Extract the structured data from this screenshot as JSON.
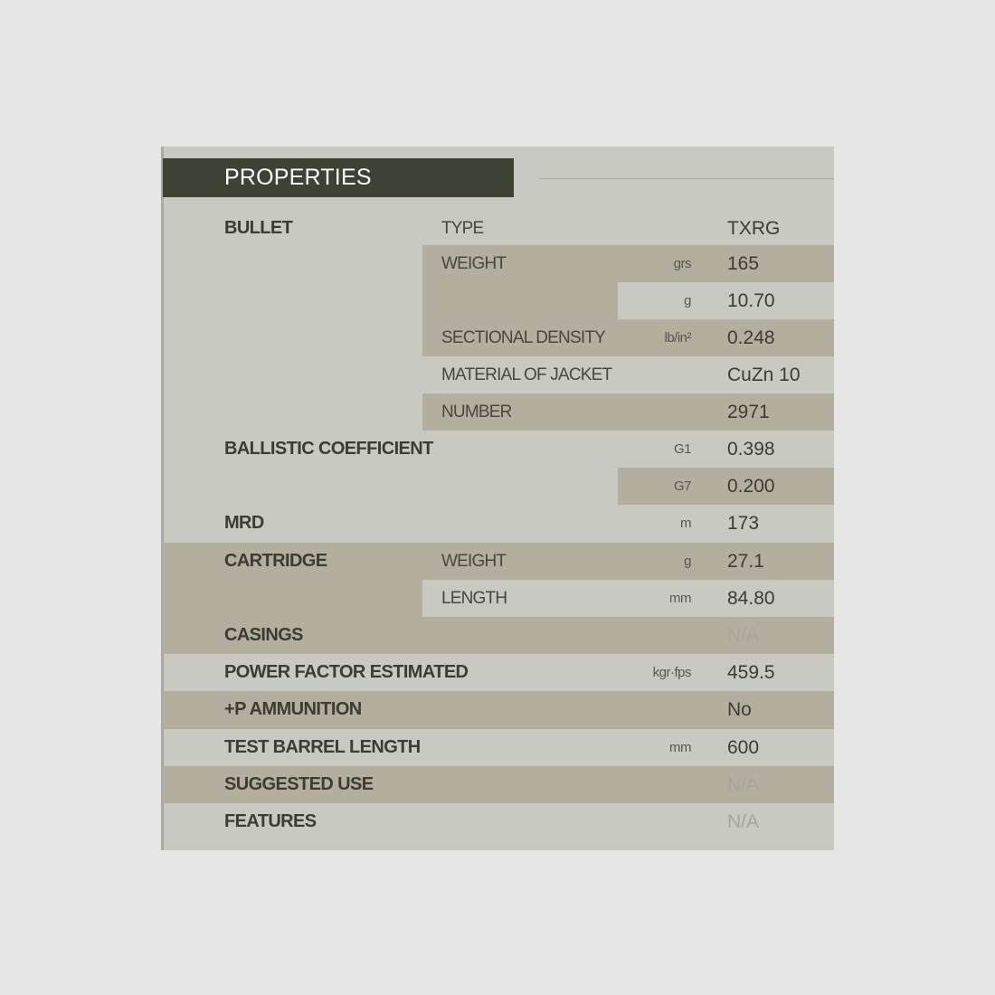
{
  "header": {
    "title": "PROPERTIES"
  },
  "table": {
    "rows": [
      {
        "group": "BULLET",
        "label": "TYPE",
        "value": "TXRG"
      },
      {
        "label": "WEIGHT",
        "unit": "grs",
        "value": "165"
      },
      {
        "unit": "g",
        "value": "10.70"
      },
      {
        "label": "SECTIONAL DENSITY",
        "unit": "lb/in²",
        "value": "0.248"
      },
      {
        "label": "MATERIAL OF JACKET",
        "value": "CuZn 10"
      },
      {
        "label": "NUMBER",
        "value": "2971"
      },
      {
        "group": "BALLISTIC COEFFICIENT",
        "unit": "G1",
        "value": "0.398"
      },
      {
        "unit": "G7",
        "value": "0.200"
      },
      {
        "group": "MRD",
        "unit": "m",
        "value": "173"
      },
      {
        "group": "CARTRIDGE",
        "label": "WEIGHT",
        "unit": "g",
        "value": "27.1"
      },
      {
        "label": "LENGTH",
        "unit": "mm",
        "value": "84.80"
      },
      {
        "group": "CASINGS",
        "value": "N/A"
      },
      {
        "group": "POWER FACTOR ESTIMATED",
        "unit": "kgr·fps",
        "value": "459.5"
      },
      {
        "group": "+P AMMUNITION",
        "value": "No"
      },
      {
        "group": "TEST BARREL LENGTH",
        "unit": "mm",
        "value": "600"
      },
      {
        "group": "SUGGESTED USE",
        "value": "N/A"
      },
      {
        "group": "FEATURES",
        "value": "N/A"
      }
    ]
  }
}
